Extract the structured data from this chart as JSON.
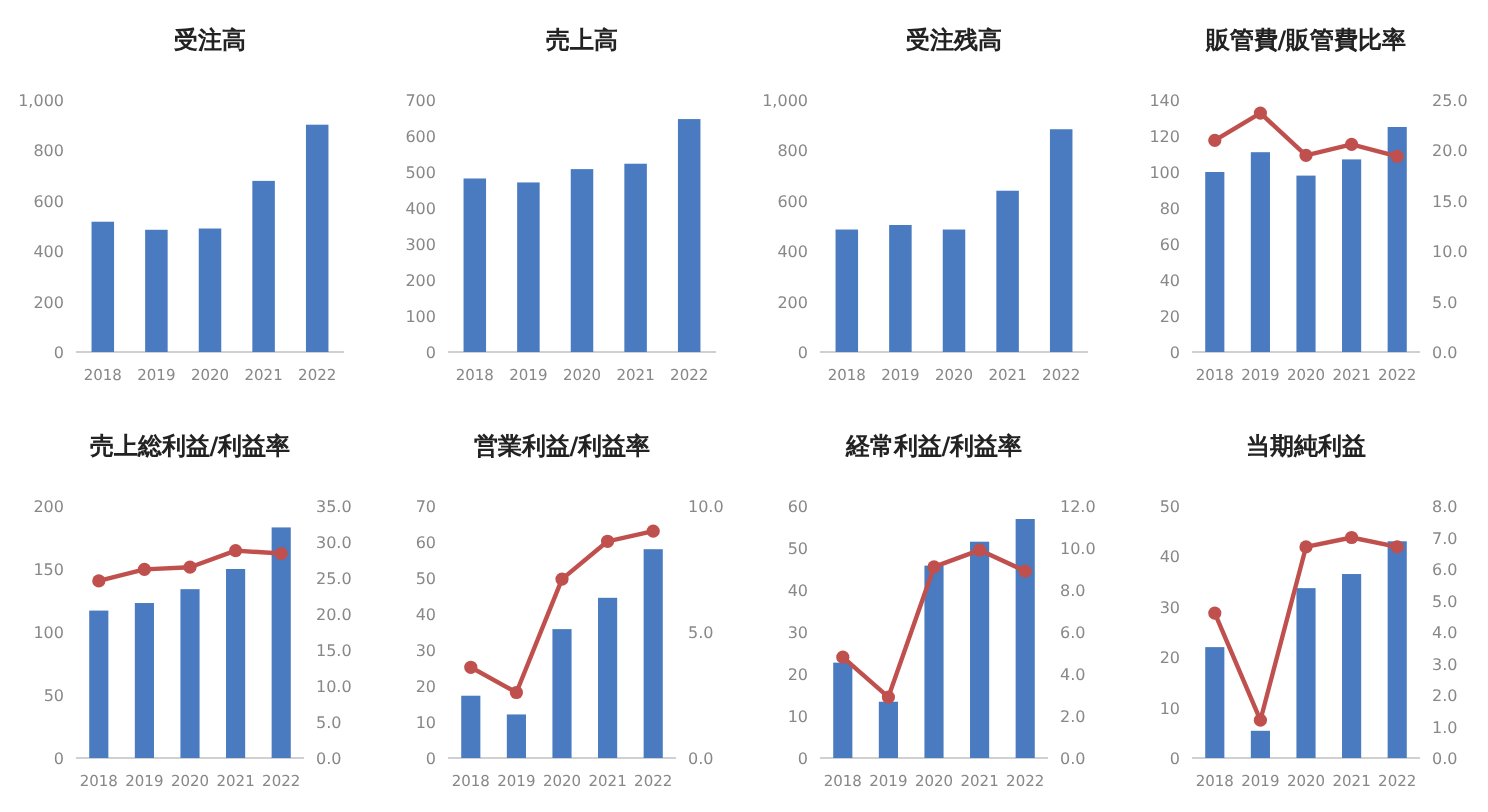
{
  "chart_data": [
    {
      "type": "bar",
      "title": "受注高",
      "categories": [
        "2018",
        "2019",
        "2020",
        "2021",
        "2022"
      ],
      "color": "#4a7bc0",
      "values": [
        517,
        485,
        490,
        679,
        902
      ],
      "ylim": [
        0,
        1000
      ],
      "yticks": [
        0,
        200,
        400,
        600,
        800,
        {
          "value": 1000,
          "label": "1,000"
        }
      ]
    },
    {
      "type": "bar",
      "title": "売上高",
      "categories": [
        "2018",
        "2019",
        "2020",
        "2021",
        "2022"
      ],
      "color": "#4a7bc0",
      "values": [
        482,
        471,
        508,
        523,
        647
      ],
      "ylim": [
        0,
        700
      ],
      "yticks": [
        0,
        100,
        200,
        300,
        400,
        500,
        600,
        700
      ]
    },
    {
      "type": "bar",
      "title": "受注残高",
      "categories": [
        "2018",
        "2019",
        "2020",
        "2021",
        "2022"
      ],
      "color": "#4a7bc0",
      "values": [
        486,
        504,
        486,
        640,
        884
      ],
      "ylim": [
        0,
        1000
      ],
      "yticks": [
        0,
        200,
        400,
        600,
        800,
        {
          "value": 1000,
          "label": "1,000"
        }
      ]
    },
    {
      "type": "bar",
      "title": "販管費/販管費比率",
      "categories": [
        "2018",
        "2019",
        "2020",
        "2021",
        "2022"
      ],
      "marker": "circle",
      "ylim": [
        0,
        140
      ],
      "yticks": [
        0,
        20,
        40,
        60,
        80,
        100,
        120,
        140
      ],
      "y2lim": [
        0,
        25
      ],
      "y2ticks": [
        {
          "value": 0,
          "label": "0.0"
        },
        {
          "value": 5,
          "label": "5.0"
        },
        {
          "value": 10,
          "label": "10.0"
        },
        {
          "value": 15,
          "label": "15.0"
        },
        {
          "value": 20,
          "label": "20.0"
        },
        {
          "value": 25,
          "label": "25.0"
        }
      ],
      "series": [
        {
          "color": "#4a7bc0",
          "values": [
            100,
            111,
            98,
            107,
            125
          ]
        },
        {
          "type": "line",
          "axis": "y2",
          "color": "#c0504d",
          "values": [
            21.0,
            23.7,
            19.5,
            20.6,
            19.4
          ]
        }
      ]
    },
    {
      "type": "bar",
      "title": "売上総利益/利益率",
      "categories": [
        "2018",
        "2019",
        "2020",
        "2021",
        "2022"
      ],
      "marker": "circle",
      "ylim": [
        0,
        200
      ],
      "yticks": [
        0,
        50,
        100,
        150,
        200
      ],
      "y2lim": [
        0,
        35
      ],
      "y2ticks": [
        {
          "value": 0,
          "label": "0.0"
        },
        {
          "value": 5,
          "label": "5.0"
        },
        {
          "value": 10,
          "label": "10.0"
        },
        {
          "value": 15,
          "label": "15.0"
        },
        {
          "value": 20,
          "label": "20.0"
        },
        {
          "value": 25,
          "label": "25.0"
        },
        {
          "value": 30,
          "label": "30.0"
        },
        {
          "value": 35,
          "label": "35.0"
        }
      ],
      "series": [
        {
          "color": "#4a7bc0",
          "values": [
            117,
            123,
            134,
            150,
            183
          ]
        },
        {
          "type": "line",
          "axis": "y2",
          "color": "#c0504d",
          "values": [
            24.6,
            26.2,
            26.5,
            28.8,
            28.4
          ]
        }
      ]
    },
    {
      "type": "bar",
      "title": "営業利益/利益率",
      "categories": [
        "2018",
        "2019",
        "2020",
        "2021",
        "2022"
      ],
      "marker": "circle",
      "ylim": [
        0,
        70
      ],
      "yticks": [
        0,
        10,
        20,
        30,
        40,
        50,
        60,
        70
      ],
      "y2lim": [
        0,
        10
      ],
      "y2ticks": [
        {
          "value": 0,
          "label": "0.0"
        },
        {
          "value": 5,
          "label": "5.0"
        },
        {
          "value": 10,
          "label": "10.0"
        }
      ],
      "series": [
        {
          "color": "#4a7bc0",
          "values": [
            17.3,
            12.1,
            35.8,
            44.5,
            58
          ]
        },
        {
          "type": "line",
          "axis": "y2",
          "color": "#c0504d",
          "values": [
            3.6,
            2.6,
            7.1,
            8.6,
            9.0
          ]
        }
      ]
    },
    {
      "type": "bar",
      "title": "経常利益/利益率",
      "categories": [
        "2018",
        "2019",
        "2020",
        "2021",
        "2022"
      ],
      "marker": "circle",
      "ylim": [
        0,
        60
      ],
      "yticks": [
        0,
        10,
        20,
        30,
        40,
        50,
        60
      ],
      "y2lim": [
        0,
        12
      ],
      "y2ticks": [
        {
          "value": 0,
          "label": "0.0"
        },
        {
          "value": 2,
          "label": "2.0"
        },
        {
          "value": 4,
          "label": "4.0"
        },
        {
          "value": 6,
          "label": "6.0"
        },
        {
          "value": 8,
          "label": "8.0"
        },
        {
          "value": 10,
          "label": "10.0"
        },
        {
          "value": 12,
          "label": "12.0"
        }
      ],
      "series": [
        {
          "color": "#4a7bc0",
          "values": [
            22.7,
            13.4,
            45.8,
            51.5,
            56.9
          ]
        },
        {
          "type": "line",
          "axis": "y2",
          "color": "#c0504d",
          "values": [
            4.8,
            2.9,
            9.1,
            9.9,
            8.9
          ]
        }
      ]
    },
    {
      "type": "bar",
      "title": "当期純利益",
      "categories": [
        "2018",
        "2019",
        "2020",
        "2021",
        "2022"
      ],
      "marker": "circle",
      "ylim": [
        0,
        50
      ],
      "yticks": [
        0,
        10,
        20,
        30,
        40,
        50
      ],
      "y2lim": [
        0,
        8
      ],
      "y2ticks": [
        {
          "value": 0,
          "label": "0.0"
        },
        {
          "value": 1,
          "label": "1.0"
        },
        {
          "value": 2,
          "label": "2.0"
        },
        {
          "value": 3,
          "label": "3.0"
        },
        {
          "value": 4,
          "label": "4.0"
        },
        {
          "value": 5,
          "label": "5.0"
        },
        {
          "value": 6,
          "label": "6.0"
        },
        {
          "value": 7,
          "label": "7.0"
        },
        {
          "value": 8,
          "label": "8.0"
        }
      ],
      "series": [
        {
          "color": "#4a7bc0",
          "values": [
            22.0,
            5.4,
            33.7,
            36.5,
            43.0
          ]
        },
        {
          "type": "line",
          "axis": "y2",
          "color": "#c0504d",
          "values": [
            4.6,
            1.2,
            6.7,
            7.0,
            6.7
          ]
        }
      ]
    }
  ]
}
